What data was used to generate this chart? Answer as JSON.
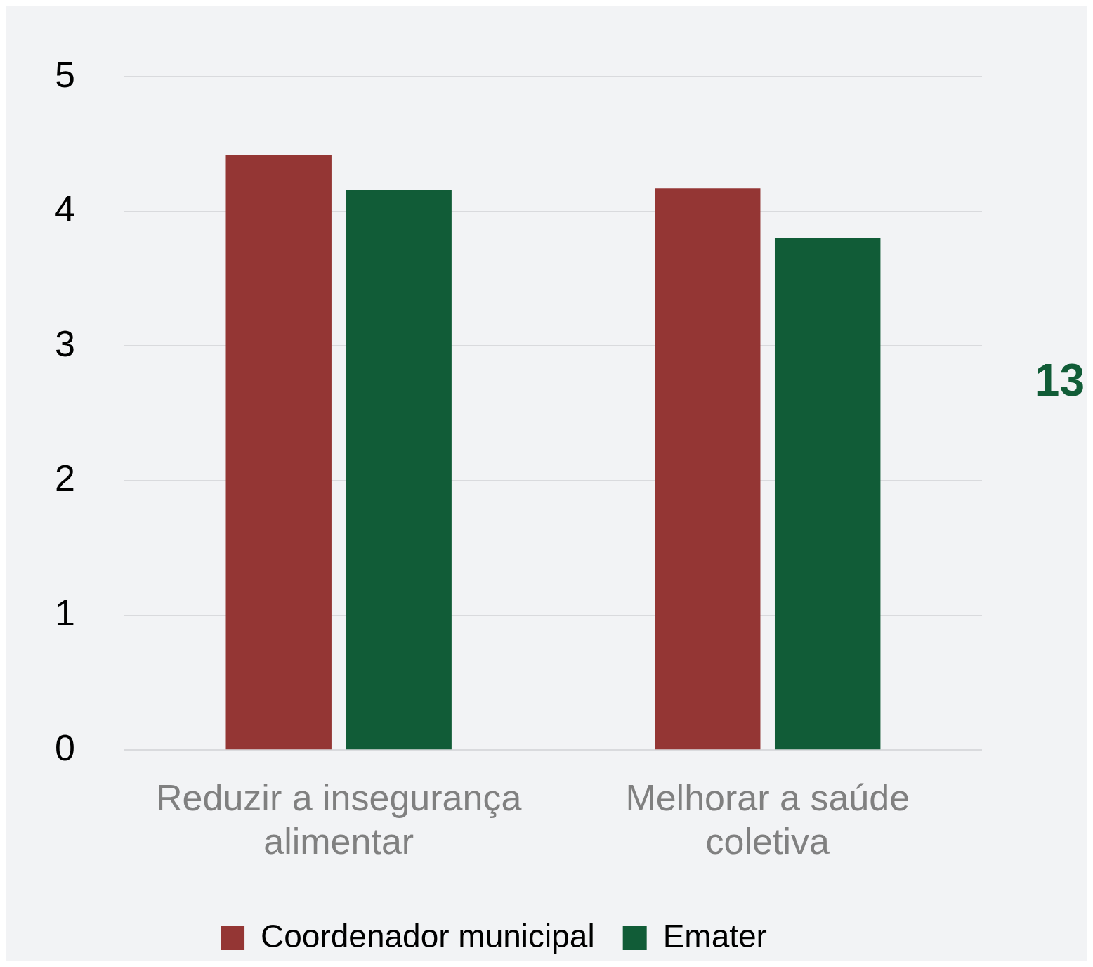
{
  "chart_data": {
    "type": "bar",
    "categories": [
      "Reduzir a insegurança alimentar",
      "Melhorar a saúde coletiva"
    ],
    "series": [
      {
        "name": "Coordenador municipal",
        "color": "#943634",
        "values": [
          4.42,
          4.17
        ]
      },
      {
        "name": "Emater",
        "color": "#115c37",
        "values": [
          4.16,
          3.8
        ]
      }
    ],
    "ylim": [
      0,
      5
    ],
    "yticks": [
      0,
      1,
      2,
      3,
      4,
      5
    ],
    "grid": "y",
    "legend": "bottom",
    "annotations": [
      "13"
    ]
  }
}
